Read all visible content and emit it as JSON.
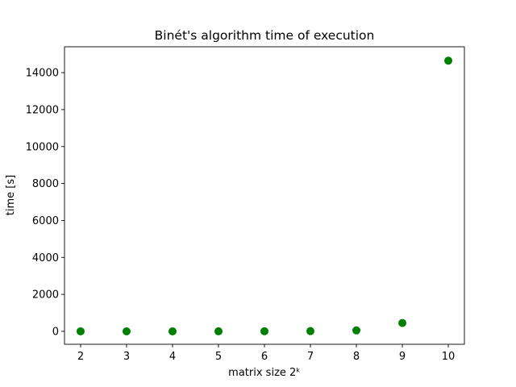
{
  "chart_data": {
    "type": "scatter",
    "title": "Binét's algorithm time of execution",
    "xlabel": "matrix size 2ᵏ",
    "ylabel": "time [s]",
    "x": [
      2,
      3,
      4,
      5,
      6,
      7,
      8,
      9,
      10
    ],
    "y": [
      0.01,
      0.05,
      0.3,
      1.5,
      6,
      12,
      50,
      450,
      14650
    ],
    "xlim": [
      1.65,
      10.35
    ],
    "ylim": [
      -700,
      15400
    ],
    "xticks": [
      2,
      3,
      4,
      5,
      6,
      7,
      8,
      9,
      10
    ],
    "yticks": [
      0,
      2000,
      4000,
      6000,
      8000,
      10000,
      12000,
      14000
    ],
    "marker_color": "#008000",
    "grid": false,
    "legend": null
  }
}
